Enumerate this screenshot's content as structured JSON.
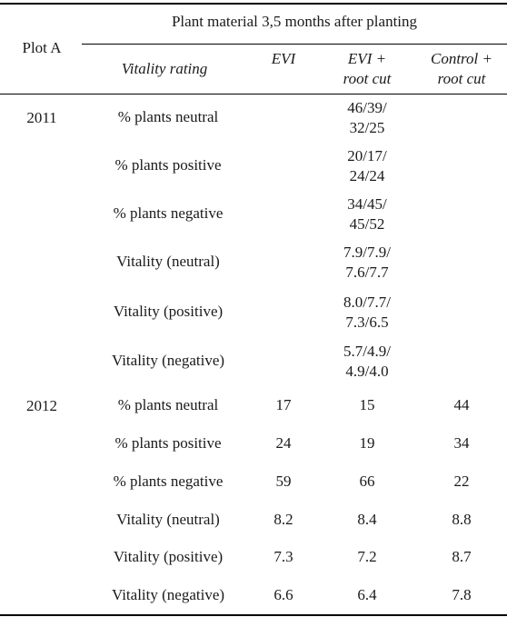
{
  "table": {
    "stub_header": "Plot A",
    "span_header": "Plant material 3,5 months after planting",
    "columns": {
      "rating": "Vitality rating",
      "evi": "EVI",
      "evi_root_1": "EVI +",
      "evi_root_2": "root cut",
      "control_1": "Control +",
      "control_2": "root cut"
    },
    "groups": [
      {
        "year": "2011",
        "rows": [
          {
            "label": "% plants neutral",
            "evi": "",
            "evi_root_1": "46/39/",
            "evi_root_2": "32/25",
            "control": ""
          },
          {
            "label": "% plants positive",
            "evi": "",
            "evi_root_1": "20/17/",
            "evi_root_2": "24/24",
            "control": ""
          },
          {
            "label": "% plants negative",
            "evi": "",
            "evi_root_1": "34/45/",
            "evi_root_2": "45/52",
            "control": ""
          },
          {
            "label": "Vitality (neutral)",
            "evi": "",
            "evi_root_1": "7.9/7.9/",
            "evi_root_2": "7.6/7.7",
            "control": ""
          },
          {
            "label": "Vitality (positive)",
            "evi": "",
            "evi_root_1": "8.0/7.7/",
            "evi_root_2": "7.3/6.5",
            "control": ""
          },
          {
            "label": "Vitality (negative)",
            "evi": "",
            "evi_root_1": "5.7/4.9/",
            "evi_root_2": "4.9/4.0",
            "control": ""
          }
        ]
      },
      {
        "year": "2012",
        "rows": [
          {
            "label": "% plants neutral",
            "evi": "17",
            "evi_root": "15",
            "control": "44"
          },
          {
            "label": "% plants positive",
            "evi": "24",
            "evi_root": "19",
            "control": "34"
          },
          {
            "label": "% plants negative",
            "evi": "59",
            "evi_root": "66",
            "control": "22"
          },
          {
            "label": "Vitality (neutral)",
            "evi": "8.2",
            "evi_root": "8.4",
            "control": "8.8"
          },
          {
            "label": "Vitality (positive)",
            "evi": "7.3",
            "evi_root": "7.2",
            "control": "8.7"
          },
          {
            "label": "Vitality (negative)",
            "evi": "6.6",
            "evi_root": "6.4",
            "control": "7.8"
          }
        ]
      }
    ]
  }
}
